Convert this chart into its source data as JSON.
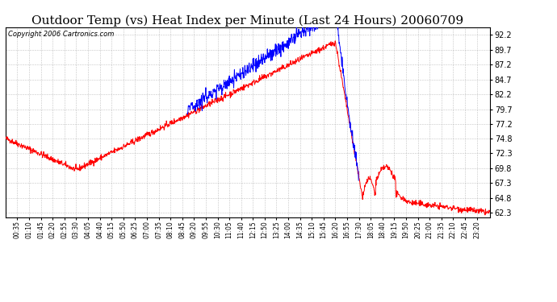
{
  "title": "Outdoor Temp (vs) Heat Index per Minute (Last 24 Hours) 20060709",
  "copyright": "Copyright 2006 Cartronics.com",
  "yticks": [
    62.3,
    64.8,
    67.3,
    69.8,
    72.3,
    74.8,
    77.2,
    79.7,
    82.2,
    84.7,
    87.2,
    89.7,
    92.2
  ],
  "ymin": 61.5,
  "ymax": 93.5,
  "xtick_labels": [
    "00:35",
    "01:10",
    "01:45",
    "02:20",
    "02:55",
    "03:30",
    "04:05",
    "04:40",
    "05:15",
    "05:50",
    "06:25",
    "07:00",
    "07:35",
    "08:10",
    "08:45",
    "09:20",
    "09:55",
    "10:30",
    "11:05",
    "11:40",
    "12:15",
    "12:50",
    "13:25",
    "14:00",
    "14:35",
    "15:10",
    "15:45",
    "16:20",
    "16:55",
    "17:30",
    "18:05",
    "18:40",
    "19:15",
    "19:50",
    "20:25",
    "21:00",
    "21:35",
    "22:10",
    "22:45",
    "23:20"
  ],
  "background_color": "#ffffff",
  "grid_color": "#aaaaaa",
  "line_color_red": "#ff0000",
  "line_color_blue": "#0000ff",
  "title_fontsize": 11,
  "copyright_fontsize": 6
}
